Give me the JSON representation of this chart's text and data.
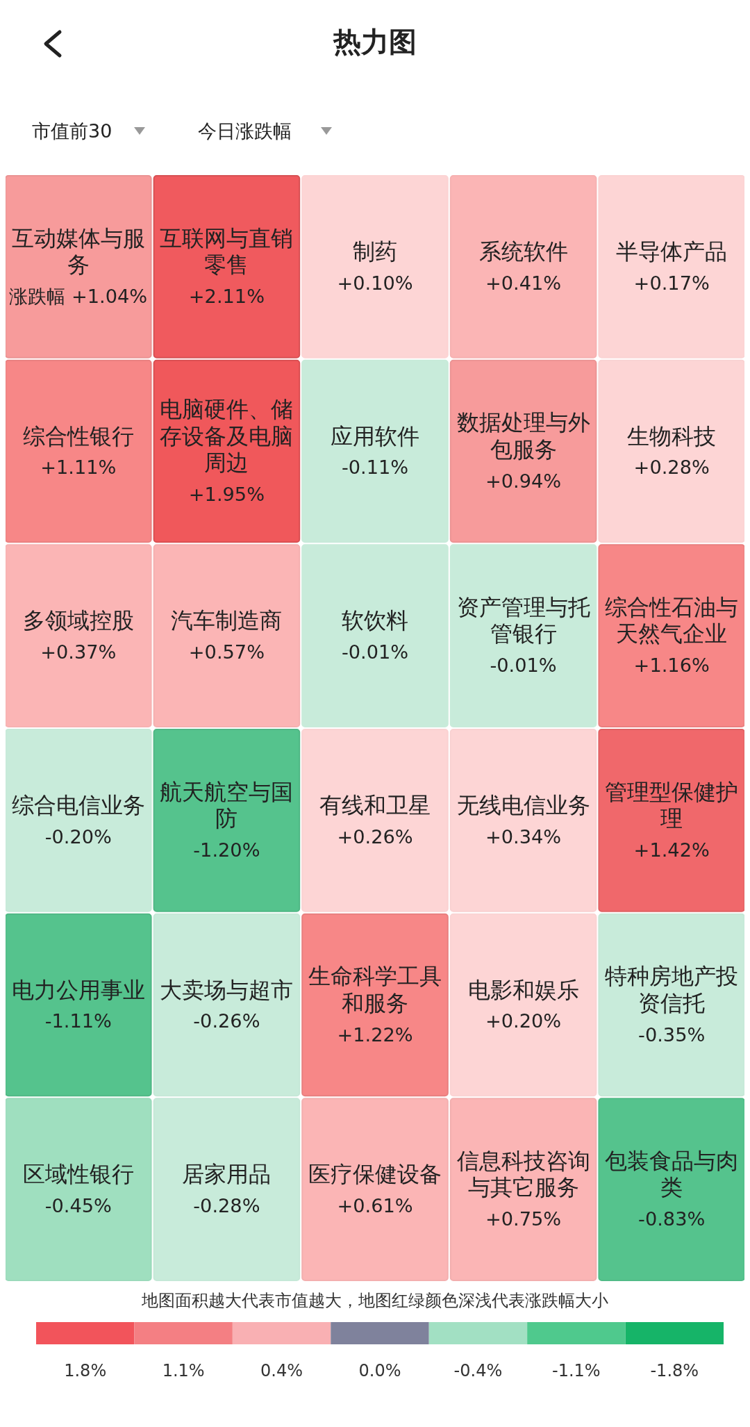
{
  "chart_data": {
    "type": "other",
    "title": "热力图",
    "clabel": "地图面积越大代表市值越大，地图红绿颜色深浅代表涨跌幅大小",
    "annotations": [
      "市值前30",
      "今日涨跌幅",
      "涨跌幅",
      "1.8%",
      "1.1%",
      "0.4%",
      "0.0%",
      "-0.4%",
      "-1.1%",
      "-1.8%"
    ],
    "categories": [
      "互动媒体与服务",
      "互联网与直销零售",
      "制药",
      "系统软件",
      "半导体产品",
      "综合性银行",
      "电脑硬件、储存设备及电脑周边",
      "应用软件",
      "数据处理与外包服务",
      "生物科技",
      "多领域控股",
      "综合电信业务",
      "电力公用事业",
      "区域性银行",
      "汽车制造商",
      "软饮料",
      "资产管理与托管银行",
      "综合性石油与天然气企业",
      "航天航空与国防",
      "大卖场与超市",
      "居家用品",
      "有线和卫星",
      "无线电信业务",
      "管理型保健护理",
      "生命科学工具和服务",
      "医疗保健设备",
      "电影和娱乐",
      "特种房地产投资信托",
      "信息科技咨询与其它服务",
      "包装食品与肉类"
    ],
    "values": [
      1.04,
      2.11,
      0.1,
      0.41,
      0.17,
      1.11,
      1.95,
      -0.11,
      0.94,
      0.28,
      0.37,
      -0.2,
      -1.11,
      -0.45,
      0.57,
      -0.01,
      -0.01,
      1.16,
      -1.2,
      -0.26,
      -0.28,
      0.26,
      0.34,
      1.42,
      1.22,
      0.61,
      0.2,
      -0.35,
      0.75,
      -0.83
    ],
    "value_labels": [
      "+1.04%",
      "+2.11%",
      "+0.10%",
      "+0.41%",
      "+0.17%",
      "+1.11%",
      "+1.95%",
      "-0.11%",
      "+0.94%",
      "+0.28%",
      "+0.37%",
      "-0.20%",
      "-1.11%",
      "-0.45%",
      "+0.57%",
      "-0.01%",
      "-0.01%",
      "+1.16%",
      "-1.20%",
      "-0.26%",
      "-0.28%",
      "+0.26%",
      "+0.34%",
      "+1.42%",
      "+1.22%",
      "+0.61%",
      "+0.20%",
      "-0.35%",
      "+0.75%",
      "-0.83%"
    ],
    "colors": [
      "#f79b9b",
      "#f05a5e",
      "#fdd5d5",
      "#fbb5b5",
      "#fdd5d5",
      "#f78787",
      "#f0585b",
      "#c8ebda",
      "#f79b9b",
      "#fdd5d5",
      "#fbb5b5",
      "#c8ebda",
      "#55c38d",
      "#9fdfbf",
      "#fbb5b5",
      "#c8ebda",
      "#c8ebda",
      "#f78787",
      "#55c38d",
      "#c8ebda",
      "#c8ebda",
      "#fdd5d5",
      "#fdd5d5",
      "#f0686b",
      "#f78787",
      "#fbb5b5",
      "#fdd5d5",
      "#c8ebda",
      "#fbb5b5",
      "#55c38d"
    ]
  }
}
